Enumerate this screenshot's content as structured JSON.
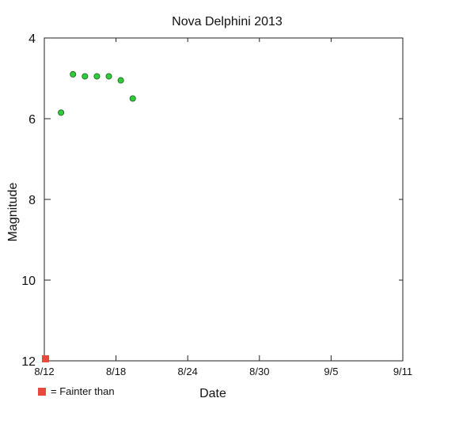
{
  "colors": {
    "detection_fill": "#2ecc3a",
    "detection_stroke": "#1f5c1f",
    "fainter_fill": "#e8493e",
    "axis": "#222222",
    "background": "#ffffff"
  },
  "legend": {
    "symbol": "red-square",
    "text": "= Fainter than"
  },
  "chart_data": {
    "type": "scatter",
    "title": "Nova Delphini 2013",
    "xlabel": "Date",
    "ylabel": "Magnitude",
    "x_ticks": [
      "8/12",
      "8/18",
      "8/24",
      "8/30",
      "9/5",
      "9/11"
    ],
    "x_tick_values": [
      12,
      18,
      24,
      30,
      36,
      42
    ],
    "xlim": [
      12,
      42
    ],
    "y_ticks": [
      "4",
      "6",
      "8",
      "10",
      "12"
    ],
    "y_tick_values": [
      4,
      6,
      8,
      10,
      12
    ],
    "ylim": [
      4,
      12
    ],
    "y_inverted": true,
    "grid": false,
    "legend_position": "bottom-left",
    "x_unit_note": "August 2013 day of month; values > 31 continue into September",
    "series": [
      {
        "marker": "circle",
        "color": "#2ecc3a",
        "points": [
          {
            "x": 13.4,
            "y": 5.85
          },
          {
            "x": 14.4,
            "y": 4.9
          },
          {
            "x": 15.4,
            "y": 4.95
          },
          {
            "x": 16.4,
            "y": 4.95
          },
          {
            "x": 17.4,
            "y": 4.95
          },
          {
            "x": 18.4,
            "y": 5.05
          },
          {
            "x": 19.4,
            "y": 5.5
          }
        ]
      },
      {
        "name": "Fainter than",
        "marker": "square",
        "color": "#e8493e",
        "points": [
          {
            "x": 12.1,
            "y": 11.95
          }
        ]
      }
    ]
  }
}
